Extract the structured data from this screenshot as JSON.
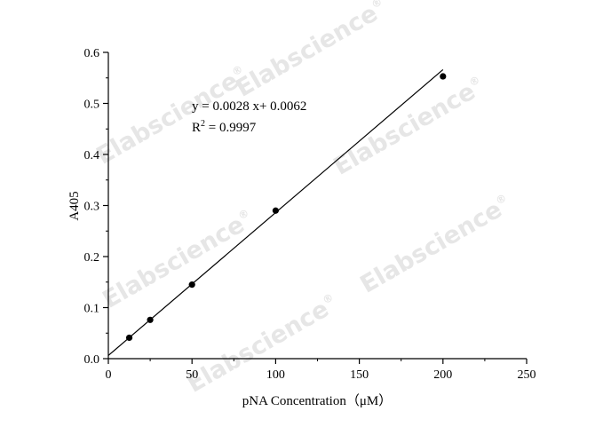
{
  "chart_data": {
    "type": "scatter",
    "xlabel": "pNA Concentration（μM）",
    "ylabel": "A405",
    "xlim": [
      0,
      250
    ],
    "ylim": [
      0,
      0.6
    ],
    "xticks": [
      "0",
      "50",
      "100",
      "150",
      "200",
      "250"
    ],
    "yticks": [
      "0.0",
      "0.1",
      "0.2",
      "0.3",
      "0.4",
      "0.5",
      "0.6"
    ],
    "x": [
      12.5,
      25,
      50,
      100,
      200
    ],
    "y": [
      0.041,
      0.076,
      0.145,
      0.29,
      0.553
    ],
    "fit": {
      "slope": 0.0028,
      "intercept": 0.0062,
      "x_range": [
        0,
        200
      ]
    },
    "annotation": {
      "equation": "y = 0.0028 x+ 0.0062",
      "r_prefix": "R",
      "r_sup": "2",
      "r_value": " = 0.9997"
    },
    "grid": false,
    "legend": "none"
  },
  "watermark": {
    "text": "Elabscience",
    "mark": "®",
    "color": "#e6e6e6"
  },
  "colors": {
    "axis": "#000000",
    "points": "#000000",
    "fit_line": "#000000"
  }
}
